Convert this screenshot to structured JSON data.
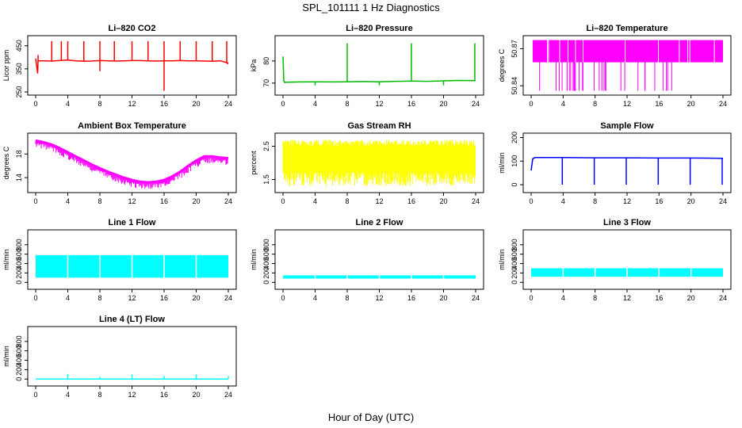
{
  "title": "SPL_101111  1 Hz Diagnostics",
  "xlabel": "Hour of Day (UTC)",
  "chart_data": [
    {
      "key": "li820-co2",
      "type": "line",
      "title": "Li–820 CO2",
      "ylabel": "Licor ppm",
      "color": "#ff0000",
      "xlim": [
        0,
        24
      ],
      "ylim": [
        250,
        480
      ],
      "x_ticks": [
        0,
        4,
        8,
        12,
        16,
        20,
        24
      ],
      "y_ticks": [
        250,
        350,
        450
      ],
      "series": [
        {
          "x": [
            0,
            0.25,
            0.3,
            1.0,
            2.0,
            3.0,
            4.0,
            5.0,
            6.0,
            7.0,
            8.0,
            9.0,
            10.0,
            11.0,
            12.0,
            13.0,
            14.0,
            15.0,
            16.0,
            17.0,
            18.0,
            19.0,
            20.0,
            21.0,
            22.0,
            23.0,
            24.0
          ],
          "y": [
            395,
            330,
            385,
            385,
            384,
            386,
            388,
            385,
            383,
            384,
            386,
            385,
            384,
            385,
            386,
            386,
            385,
            384,
            385,
            385,
            386,
            385,
            385,
            384,
            383,
            385,
            375
          ]
        }
      ],
      "spikes_high": [
        {
          "x": 0.3,
          "y": 410
        },
        {
          "x": 2.0,
          "y": 470
        },
        {
          "x": 3.2,
          "y": 470
        },
        {
          "x": 4.0,
          "y": 470
        },
        {
          "x": 6.0,
          "y": 470
        },
        {
          "x": 8.0,
          "y": 470
        },
        {
          "x": 9.8,
          "y": 470
        },
        {
          "x": 12.0,
          "y": 470
        },
        {
          "x": 14.0,
          "y": 470
        },
        {
          "x": 16.0,
          "y": 470
        },
        {
          "x": 18.0,
          "y": 470
        },
        {
          "x": 20.0,
          "y": 470
        },
        {
          "x": 22.0,
          "y": 470
        },
        {
          "x": 23.8,
          "y": 470
        }
      ],
      "spikes_low": [
        {
          "x": 8.0,
          "y": 340
        },
        {
          "x": 16.0,
          "y": 255
        },
        {
          "x": 23.9,
          "y": 370
        }
      ]
    },
    {
      "key": "li820-pressure",
      "type": "line",
      "title": "Li–820 Pressure",
      "ylabel": "kPa",
      "color": "#00bb00",
      "xlim": [
        0,
        24
      ],
      "ylim": [
        66,
        90
      ],
      "x_ticks": [
        0,
        4,
        8,
        12,
        16,
        20,
        24
      ],
      "y_ticks": [
        70,
        80
      ],
      "series": [
        {
          "x": [
            0,
            0.1,
            0.2,
            0.4,
            2.0,
            4.0,
            6.0,
            8.0,
            10.0,
            12.0,
            14.0,
            16.0,
            18.0,
            20.0,
            22.0,
            24.0
          ],
          "y": [
            82,
            71,
            70.3,
            70.4,
            70.5,
            70.6,
            70.5,
            70.6,
            70.7,
            70.6,
            70.8,
            70.9,
            70.8,
            71.0,
            71.2,
            71.1
          ]
        }
      ],
      "spikes_high": [
        {
          "x": 8.0,
          "y": 88
        },
        {
          "x": 16.0,
          "y": 88
        },
        {
          "x": 23.9,
          "y": 88
        }
      ],
      "spikes_low": [
        {
          "x": 4.0,
          "y": 69
        },
        {
          "x": 12.0,
          "y": 69
        },
        {
          "x": 20.0,
          "y": 69
        }
      ]
    },
    {
      "key": "li820-temperature",
      "type": "band",
      "title": "Li–820 Temperature",
      "ylabel": "degrees C",
      "color": "#ff00ff",
      "xlim": [
        0,
        24
      ],
      "ylim": [
        50.835,
        50.878
      ],
      "x_ticks": [
        0,
        4,
        8,
        12,
        16,
        20,
        24
      ],
      "y_ticks": [
        50.84,
        50.87
      ],
      "y_tick_labels": [
        "50.84",
        "50.87"
      ],
      "band": {
        "x_start": 0.2,
        "x_end": 24.0,
        "y_low": 50.859,
        "y_high": 50.877
      }
    },
    {
      "key": "ambient-box-temperature",
      "type": "line",
      "title": "Ambient Box Temperature",
      "ylabel": "degrees C",
      "color": "#ff00ff",
      "xlim": [
        0,
        24
      ],
      "ylim": [
        12,
        21
      ],
      "x_ticks": [
        0,
        4,
        8,
        12,
        16,
        20,
        24
      ],
      "y_ticks": [
        14,
        18
      ],
      "series": [
        {
          "x": [
            0,
            1,
            2,
            3,
            4,
            5,
            6,
            7,
            8,
            9,
            10,
            11,
            12,
            13,
            14,
            15,
            16,
            17,
            18,
            19,
            20,
            21,
            22,
            23,
            24
          ],
          "y": [
            20.3,
            20.0,
            19.6,
            19.0,
            18.3,
            17.6,
            16.9,
            16.2,
            15.6,
            15.0,
            14.5,
            14.0,
            13.6,
            13.3,
            13.2,
            13.3,
            13.6,
            14.2,
            15.0,
            16.0,
            16.9,
            17.6,
            17.6,
            17.4,
            17.3
          ]
        }
      ]
    },
    {
      "key": "gas-stream-rh",
      "type": "band",
      "title": "Gas Stream RH",
      "ylabel": "percent",
      "color": "#ffff00",
      "xlim": [
        0,
        24
      ],
      "ylim": [
        1.2,
        2.8
      ],
      "x_ticks": [
        0,
        4,
        8,
        12,
        16,
        20,
        24
      ],
      "y_ticks": [
        1.5,
        2.5
      ],
      "y_tick_labels": [
        "1.5",
        "2.5"
      ],
      "band": {
        "x_start": 0,
        "x_end": 24,
        "y_low": 1.3,
        "y_high": 2.7
      }
    },
    {
      "key": "sample-flow",
      "type": "line",
      "title": "Sample Flow",
      "ylabel": "ml/min",
      "color": "#0000ff",
      "xlim": [
        0,
        24
      ],
      "ylim": [
        -20,
        205
      ],
      "x_ticks": [
        0,
        4,
        8,
        12,
        16,
        20,
        24
      ],
      "y_ticks": [
        0,
        100,
        200
      ],
      "series": [
        {
          "x": [
            0,
            0.2,
            0.5,
            4,
            8,
            12,
            16,
            20,
            24
          ],
          "y": [
            60,
            110,
            115,
            115,
            114,
            114,
            113,
            113,
            112
          ]
        }
      ],
      "spikes_low": [
        {
          "x": 3.9,
          "y": 0
        },
        {
          "x": 7.9,
          "y": 0
        },
        {
          "x": 11.9,
          "y": 0
        },
        {
          "x": 15.9,
          "y": 0
        },
        {
          "x": 19.9,
          "y": 0
        },
        {
          "x": 23.9,
          "y": 0
        }
      ]
    },
    {
      "key": "line1-flow",
      "type": "band",
      "title": "Line 1 Flow",
      "ylabel": "ml/min",
      "color": "#00ffff",
      "xlim": [
        0,
        24
      ],
      "ylim": [
        -80,
        1050
      ],
      "x_ticks": [
        0,
        4,
        8,
        12,
        16,
        20,
        24
      ],
      "y_ticks": [
        0,
        200,
        400,
        600,
        800
      ],
      "band": {
        "x_start": 0,
        "x_end": 24,
        "y_low": 100,
        "y_high": 580
      },
      "gaps": [
        4,
        8,
        12,
        16,
        20
      ]
    },
    {
      "key": "line2-flow",
      "type": "band",
      "title": "Line 2 Flow",
      "ylabel": "ml/min",
      "color": "#00ffff",
      "xlim": [
        0,
        24
      ],
      "ylim": [
        -80,
        1050
      ],
      "x_ticks": [
        0,
        4,
        8,
        12,
        16,
        20,
        24
      ],
      "y_ticks": [
        0,
        200,
        400,
        600,
        800
      ],
      "band": {
        "x_start": 0,
        "x_end": 24,
        "y_low": 80,
        "y_high": 150
      },
      "gaps": [
        4,
        8,
        12,
        16,
        20
      ]
    },
    {
      "key": "line3-flow",
      "type": "band",
      "title": "Line 3 Flow",
      "ylabel": "ml/min",
      "color": "#00ffff",
      "xlim": [
        0,
        24
      ],
      "ylim": [
        -80,
        1050
      ],
      "x_ticks": [
        0,
        4,
        8,
        12,
        16,
        20,
        24
      ],
      "y_ticks": [
        0,
        200,
        400,
        600,
        800
      ],
      "band": {
        "x_start": 0,
        "x_end": 24,
        "y_low": 120,
        "y_high": 300
      },
      "gaps": [
        4,
        8,
        12,
        16,
        20
      ]
    },
    {
      "key": "line4-flow",
      "type": "line",
      "title": "Line 4 (LT) Flow",
      "ylabel": "ml/min",
      "color": "#00ffff",
      "xlim": [
        0,
        24
      ],
      "ylim": [
        -80,
        1050
      ],
      "x_ticks": [
        0,
        4,
        8,
        12,
        16,
        20,
        24
      ],
      "y_ticks": [
        0,
        200,
        400,
        600,
        800
      ],
      "series": [
        {
          "x": [
            0,
            24
          ],
          "y": [
            0,
            0
          ]
        }
      ],
      "spikes_high": [
        {
          "x": 4.0,
          "y": 110
        },
        {
          "x": 8.0,
          "y": 50
        },
        {
          "x": 12.0,
          "y": 100
        },
        {
          "x": 16.0,
          "y": 60
        },
        {
          "x": 20.0,
          "y": 100
        },
        {
          "x": 24.0,
          "y": 60
        }
      ]
    }
  ]
}
